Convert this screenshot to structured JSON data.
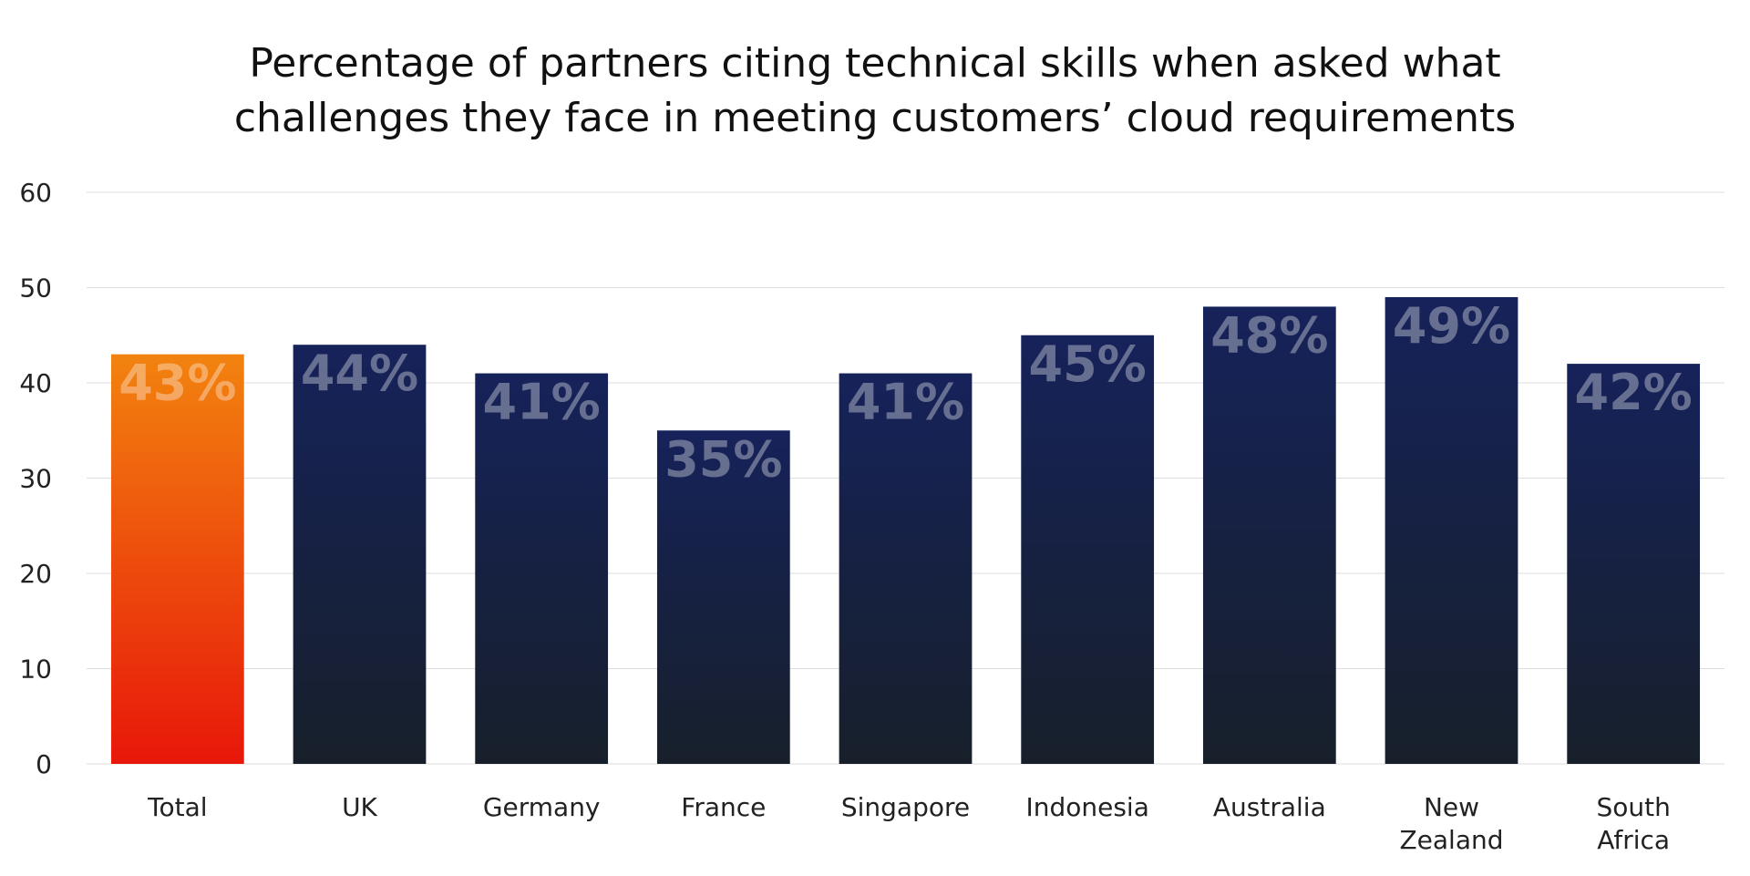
{
  "chart_data": {
    "type": "bar",
    "title_lines": [
      "Percentage of partners citing technical skills when asked what",
      "challenges they face in meeting customers’ cloud requirements"
    ],
    "categories": [
      [
        "Total"
      ],
      [
        "UK"
      ],
      [
        "Germany"
      ],
      [
        "France"
      ],
      [
        "Singapore"
      ],
      [
        "Indonesia"
      ],
      [
        "Australia"
      ],
      [
        "New",
        "Zealand"
      ],
      [
        "South",
        "Africa"
      ]
    ],
    "values": [
      43,
      44,
      41,
      35,
      41,
      45,
      48,
      49,
      42
    ],
    "data_labels": [
      "43%",
      "44%",
      "41%",
      "35%",
      "41%",
      "45%",
      "48%",
      "49%",
      "42%"
    ],
    "ylim": [
      0,
      60
    ],
    "yticks": [
      "0",
      "10",
      "20",
      "30",
      "40",
      "50",
      "60"
    ],
    "xlabel": "",
    "ylabel": "",
    "grid": true,
    "highlight_index": 0,
    "colors": {
      "highlight_top": "#f2830f",
      "highlight_bottom": "#e8170a",
      "bar_top": "#16225a",
      "bar_bottom": "#17202a",
      "grid": "#dddddd"
    }
  }
}
